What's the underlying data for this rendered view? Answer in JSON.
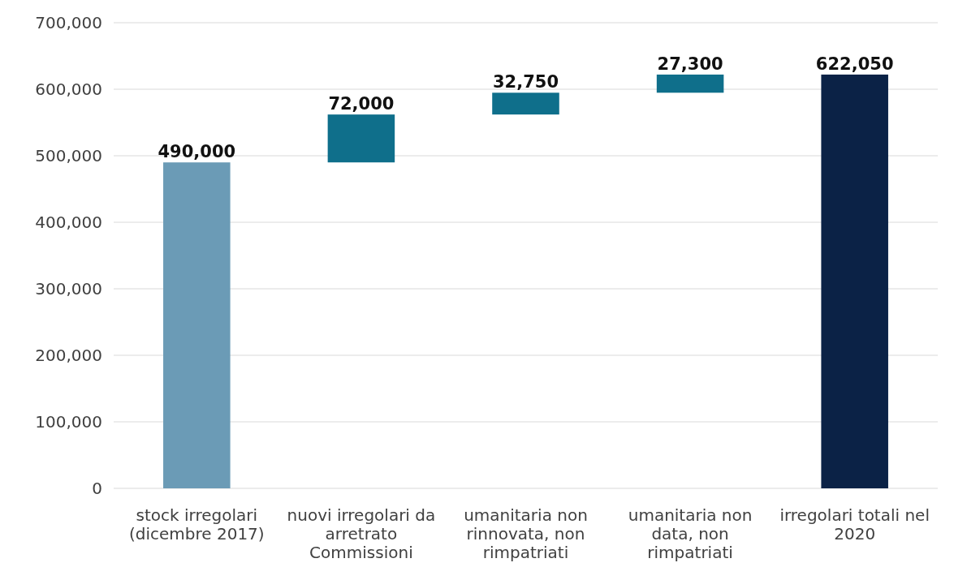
{
  "chart_data": {
    "type": "bar",
    "categories": [
      "stock irregolari (dicembre 2017)",
      "nuovi irregolari da arretrato Commissioni",
      "umanitaria non rinnovata, non rimpatriati",
      "umanitaria non data, non rimpatriati",
      "irregolari totali nel 2020"
    ],
    "values": [
      490000,
      72000,
      32750,
      27300,
      622050
    ],
    "base": [
      0,
      490000,
      562000,
      594750,
      0
    ],
    "colors": [
      "#6b9bb6",
      "#0f6f8b",
      "#0f6f8b",
      "#0f6f8b",
      "#0b2246"
    ],
    "ylim": [
      0,
      700000
    ],
    "yticks": [
      0,
      {
        "value": 100000,
        "label": "100,000"
      },
      {
        "value": 200000,
        "label": "200,000"
      },
      {
        "value": 300000,
        "label": "300,000"
      },
      {
        "value": 400000,
        "label": "400,000"
      },
      {
        "value": 500000,
        "label": "500,000"
      },
      {
        "value": 600000,
        "label": "600,000"
      },
      {
        "value": 700000,
        "label": "700,000"
      }
    ],
    "grid": "y",
    "value_labels": [
      "490,000",
      "72,000",
      "32,750",
      "27,300",
      "622,050"
    ]
  }
}
